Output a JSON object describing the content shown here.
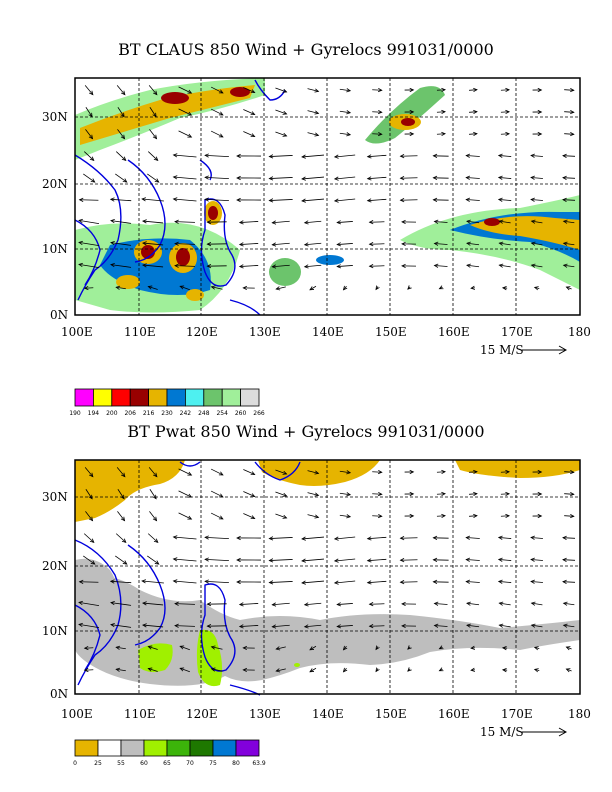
{
  "top_panel": {
    "title": "BT CLAUS 850 Wind + Gyrelocs 991031/0000",
    "x_ticks": [
      "100E",
      "110E",
      "120E",
      "130E",
      "140E",
      "150E",
      "160E",
      "170E",
      "180"
    ],
    "y_ticks": [
      "0N",
      "10N",
      "20N",
      "30N"
    ],
    "vector_scale_label": "15 M/S",
    "colorbar": {
      "labels": [
        "190",
        "194",
        "200",
        "206",
        "216",
        "230",
        "242",
        "248",
        "254",
        "260",
        "266"
      ],
      "colors": [
        "#ff00ff",
        "#ffff00",
        "#ff0000",
        "#990000",
        "#e6b400",
        "#0078d2",
        "#4ef0f0",
        "#6cc46c",
        "#a0ef9a",
        "#dcdcdc"
      ]
    }
  },
  "bottom_panel": {
    "title": "BT Pwat 850 Wind + Gyrelocs 991031/0000",
    "x_ticks": [
      "100E",
      "110E",
      "120E",
      "130E",
      "140E",
      "150E",
      "160E",
      "170E",
      "180"
    ],
    "y_ticks": [
      "0N",
      "10N",
      "20N",
      "30N"
    ],
    "vector_scale_label": "15 M/S",
    "colorbar": {
      "labels": [
        "0",
        "25",
        "55",
        "60",
        "65",
        "70",
        "75",
        "80",
        "63.9"
      ],
      "colors": [
        "#e6b400",
        "#ffffff",
        "#bebebe",
        "#a0f000",
        "#3cb40a",
        "#1e7800",
        "#0078d2",
        "#8200dc"
      ]
    }
  }
}
